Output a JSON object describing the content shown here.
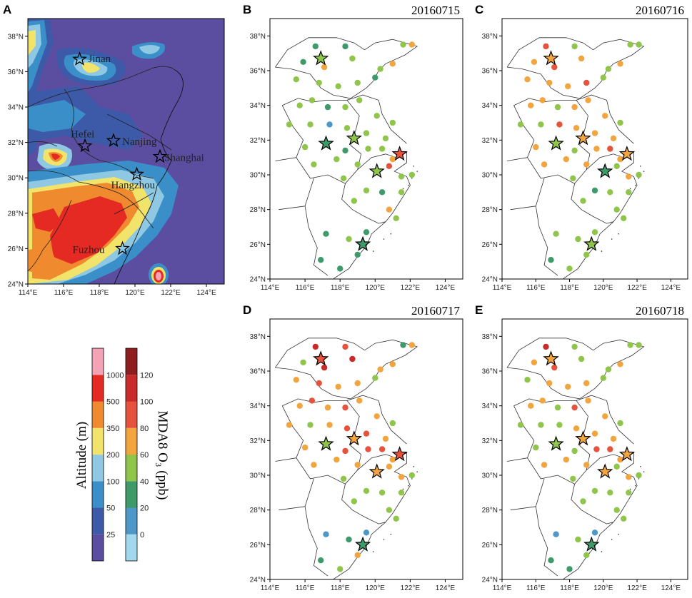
{
  "figure": {
    "panels": [
      {
        "label": "A",
        "date": ""
      },
      {
        "label": "B",
        "date": "20160715"
      },
      {
        "label": "C",
        "date": "20160716"
      },
      {
        "label": "D",
        "date": "20160717"
      },
      {
        "label": "E",
        "date": "20160718"
      }
    ]
  },
  "chart_data": {
    "type": "map",
    "x_axis": {
      "ticks": [
        "114°E",
        "116°E",
        "118°E",
        "120°E",
        "122°E",
        "124°E"
      ],
      "values": [
        114,
        116,
        118,
        120,
        122,
        124
      ],
      "range": [
        114,
        125
      ]
    },
    "y_axis": {
      "ticks": [
        "24°N",
        "26°N",
        "28°N",
        "30°N",
        "32°N",
        "34°N",
        "36°N",
        "38°N"
      ],
      "values": [
        24,
        26,
        28,
        30,
        32,
        34,
        36,
        38
      ],
      "range": [
        24,
        39
      ]
    },
    "cities": [
      {
        "name": "Jinan",
        "lon": 116.9,
        "lat": 36.7
      },
      {
        "name": "Hefei",
        "lon": 117.2,
        "lat": 31.8
      },
      {
        "name": "Nanjing",
        "lon": 118.8,
        "lat": 32.1
      },
      {
        "name": "Shanghai",
        "lon": 121.4,
        "lat": 31.2
      },
      {
        "name": "Hangzhou",
        "lon": 120.1,
        "lat": 30.2
      },
      {
        "name": "Fuzhou",
        "lon": 119.3,
        "lat": 26.0
      }
    ],
    "altitude_colorbar": {
      "title": "Altitude (m)",
      "tick_labels": [
        "25",
        "50",
        "100",
        "200",
        "350",
        "500",
        "1000"
      ],
      "colors": [
        "#5b4ea1",
        "#3d5aa8",
        "#3b8fc8",
        "#8ec8e3",
        "#f2e36a",
        "#f08a2e",
        "#e42a23",
        "#f4a3b4"
      ]
    },
    "o3_colorbar": {
      "title": "MDA8 O₃ (ppb)",
      "tick_labels": [
        "0",
        "20",
        "40",
        "60",
        "80",
        "100",
        "120"
      ],
      "colors": [
        "#a3d9ee",
        "#4d98c9",
        "#3e9a68",
        "#8ec54a",
        "#f2a43e",
        "#e5533c",
        "#c92a2a",
        "#8e1e1e"
      ]
    },
    "stations": [
      {
        "lon": 116.6,
        "lat": 37.4,
        "B": 2,
        "C": 5,
        "D": 6,
        "E": 6
      },
      {
        "lon": 118.3,
        "lat": 37.4,
        "B": 2,
        "C": 3,
        "D": 5,
        "E": 3
      },
      {
        "lon": 121.6,
        "lat": 37.5,
        "B": 3,
        "C": 3,
        "D": 2,
        "E": 3
      },
      {
        "lon": 122.1,
        "lat": 37.5,
        "B": 4,
        "C": 3,
        "D": 4,
        "E": 3
      },
      {
        "lon": 115.9,
        "lat": 36.5,
        "B": 2,
        "C": 4,
        "D": 3,
        "E": 4
      },
      {
        "lon": 117.1,
        "lat": 36.2,
        "B": 4,
        "C": 5,
        "D": 6,
        "E": 5
      },
      {
        "lon": 118.7,
        "lat": 36.7,
        "B": 3,
        "C": 4,
        "D": 6,
        "E": 3
      },
      {
        "lon": 120.3,
        "lat": 36.1,
        "B": 3,
        "C": 3,
        "D": 4,
        "E": 3
      },
      {
        "lon": 121.0,
        "lat": 36.4,
        "B": 4,
        "C": 4,
        "D": 4,
        "E": 4
      },
      {
        "lon": 115.5,
        "lat": 35.5,
        "B": 3,
        "C": 4,
        "D": 4,
        "E": 3
      },
      {
        "lon": 116.8,
        "lat": 35.3,
        "B": 3,
        "C": 4,
        "D": 5,
        "E": 4
      },
      {
        "lon": 117.9,
        "lat": 35.1,
        "B": 3,
        "C": 4,
        "D": 4,
        "E": 4
      },
      {
        "lon": 119.0,
        "lat": 35.3,
        "B": 3,
        "C": 5,
        "D": 4,
        "E": 4
      },
      {
        "lon": 120.0,
        "lat": 35.6,
        "B": 2,
        "C": 3,
        "D": 3,
        "E": 3
      },
      {
        "lon": 115.7,
        "lat": 34.0,
        "B": 3,
        "C": 4,
        "D": 4,
        "E": 4
      },
      {
        "lon": 116.4,
        "lat": 34.3,
        "B": 3,
        "C": 4,
        "D": 5,
        "E": 4
      },
      {
        "lon": 117.3,
        "lat": 33.9,
        "B": 2,
        "C": 3,
        "D": 4,
        "E": 3
      },
      {
        "lon": 118.3,
        "lat": 33.9,
        "B": 3,
        "C": 4,
        "D": 5,
        "E": 5
      },
      {
        "lon": 119.1,
        "lat": 34.3,
        "B": 3,
        "C": 4,
        "D": 4,
        "E": 4
      },
      {
        "lon": 120.1,
        "lat": 33.4,
        "B": 3,
        "C": 4,
        "D": 4,
        "E": 4
      },
      {
        "lon": 121.0,
        "lat": 33.0,
        "B": 3,
        "C": 3,
        "D": 3,
        "E": 3
      },
      {
        "lon": 115.1,
        "lat": 32.9,
        "B": 3,
        "C": 3,
        "D": 4,
        "E": 3
      },
      {
        "lon": 116.3,
        "lat": 32.9,
        "B": 3,
        "C": 3,
        "D": 3,
        "E": 3
      },
      {
        "lon": 117.4,
        "lat": 32.9,
        "B": 1,
        "C": 5,
        "D": 4,
        "E": 3
      },
      {
        "lon": 118.4,
        "lat": 32.7,
        "B": 3,
        "C": 4,
        "D": 5,
        "E": 4
      },
      {
        "lon": 119.5,
        "lat": 32.4,
        "B": 3,
        "C": 4,
        "D": 5,
        "E": 4
      },
      {
        "lon": 120.6,
        "lat": 32.1,
        "B": 3,
        "C": 4,
        "D": 4,
        "E": 4
      },
      {
        "lon": 116.0,
        "lat": 31.6,
        "B": 3,
        "C": 4,
        "D": 4,
        "E": 3
      },
      {
        "lon": 118.3,
        "lat": 31.4,
        "B": 2,
        "C": 3,
        "D": 5,
        "E": 3
      },
      {
        "lon": 119.6,
        "lat": 31.5,
        "B": 3,
        "C": 4,
        "D": 5,
        "E": 5
      },
      {
        "lon": 120.4,
        "lat": 31.5,
        "B": 3,
        "C": 5,
        "D": 5,
        "E": 5
      },
      {
        "lon": 121.0,
        "lat": 30.9,
        "B": 4,
        "C": 4,
        "D": 4,
        "E": 4
      },
      {
        "lon": 116.5,
        "lat": 30.6,
        "B": 3,
        "C": 4,
        "D": 4,
        "E": 4
      },
      {
        "lon": 117.8,
        "lat": 30.9,
        "B": 3,
        "C": 4,
        "D": 4,
        "E": 4
      },
      {
        "lon": 119.0,
        "lat": 30.6,
        "B": 3,
        "C": 4,
        "D": 4,
        "E": 4
      },
      {
        "lon": 120.8,
        "lat": 30.5,
        "B": 5,
        "C": 3,
        "D": 4,
        "E": 3
      },
      {
        "lon": 118.2,
        "lat": 29.8,
        "B": 3,
        "C": 3,
        "D": 3,
        "E": 3
      },
      {
        "lon": 121.5,
        "lat": 29.9,
        "B": 3,
        "C": 4,
        "D": 4,
        "E": 4
      },
      {
        "lon": 122.1,
        "lat": 30.0,
        "B": 3,
        "C": 3,
        "D": 3,
        "E": 3
      },
      {
        "lon": 119.5,
        "lat": 29.1,
        "B": 3,
        "C": 2,
        "D": 3,
        "E": 3
      },
      {
        "lon": 120.4,
        "lat": 29.0,
        "B": 2,
        "C": 3,
        "D": 3,
        "E": 3
      },
      {
        "lon": 121.5,
        "lat": 29.0,
        "B": 3,
        "C": 3,
        "D": 3,
        "E": 3
      },
      {
        "lon": 118.8,
        "lat": 28.5,
        "B": 3,
        "C": 3,
        "D": 3,
        "E": 3
      },
      {
        "lon": 120.8,
        "lat": 28.0,
        "B": 4,
        "C": 3,
        "D": 3,
        "E": 3
      },
      {
        "lon": 121.2,
        "lat": 27.5,
        "B": 3,
        "C": 3,
        "D": 3,
        "E": 3
      },
      {
        "lon": 117.2,
        "lat": 26.6,
        "B": 2,
        "C": 3,
        "D": 1,
        "E": 1
      },
      {
        "lon": 119.5,
        "lat": 26.7,
        "B": 2,
        "C": 3,
        "D": 1,
        "E": 1
      },
      {
        "lon": 118.5,
        "lat": 26.3,
        "B": 3,
        "C": 3,
        "D": 2,
        "E": 3
      },
      {
        "lon": 119.0,
        "lat": 25.4,
        "B": 2,
        "C": 3,
        "D": 4,
        "E": 3
      },
      {
        "lon": 116.9,
        "lat": 25.1,
        "B": 2,
        "C": 2,
        "D": 2,
        "E": 2
      },
      {
        "lon": 118.0,
        "lat": 24.6,
        "B": 2,
        "C": 3,
        "D": 3,
        "E": 2
      }
    ],
    "city_star_levels": {
      "B": [
        3,
        2,
        3,
        5,
        3,
        2
      ],
      "C": [
        4,
        3,
        4,
        4,
        2,
        3
      ],
      "D": [
        5,
        3,
        4,
        5,
        4,
        2
      ],
      "E": [
        4,
        3,
        4,
        4,
        4,
        2
      ]
    }
  }
}
